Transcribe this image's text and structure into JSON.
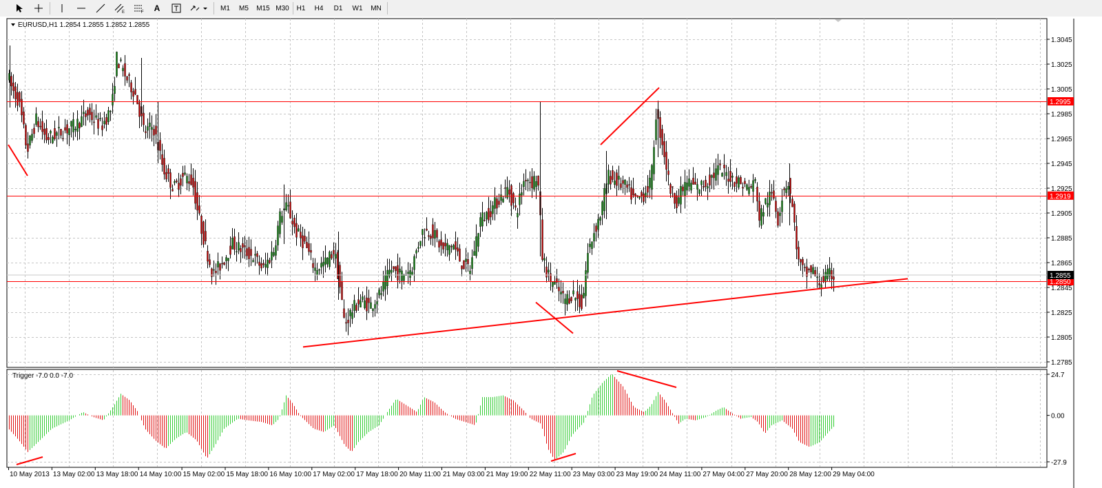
{
  "toolbar": {
    "tools": [
      {
        "name": "cursor-tool-button",
        "icon": "cursor-arrow-icon"
      },
      {
        "name": "crosshair-tool-button",
        "icon": "crosshair-icon"
      },
      {
        "name": "vertical-line-tool-button",
        "icon": "vertical-line-icon"
      },
      {
        "name": "horizontal-line-tool-button",
        "icon": "horizontal-line-icon"
      },
      {
        "name": "trendline-tool-button",
        "icon": "trendline-icon"
      },
      {
        "name": "equidistant-channel-tool-button",
        "icon": "equidistant-channel-icon"
      },
      {
        "name": "fibonacci-tool-button",
        "icon": "fibonacci-icon"
      },
      {
        "name": "text-tool-button",
        "icon": "text-icon",
        "label": "A"
      },
      {
        "name": "text-label-tool-button",
        "icon": "text-label-icon"
      },
      {
        "name": "arrows-tool-button",
        "icon": "arrows-icon"
      }
    ],
    "periods": [
      "M1",
      "M5",
      "M15",
      "M30",
      "H1",
      "H4",
      "D1",
      "W1",
      "MN"
    ]
  },
  "chart": {
    "symbol_label": "EURUSD,H1  1.2854 1.2855 1.2852 1.2855",
    "price_ticks": [
      "1.3045",
      "1.3025",
      "1.3005",
      "1.2985",
      "1.2965",
      "1.2945",
      "1.2925",
      "1.2905",
      "1.2885",
      "1.2865",
      "1.2845",
      "1.2825",
      "1.2805",
      "1.2785"
    ],
    "current_price": "1.2855",
    "horizontal_lines": [
      "1.2995",
      "1.2919",
      "1.2850"
    ],
    "colors": {
      "bull": "#0a7d0a",
      "bear": "#c00000",
      "line": "#ff0000",
      "grid": "#c4c4c4"
    }
  },
  "indicator": {
    "label": "Trigger -7.0 0.0 -7.0",
    "ticks": [
      "24.7",
      "0.00",
      "-27.9"
    ],
    "colors": {
      "up": "#33cc33",
      "down": "#e01010"
    }
  },
  "time_axis": {
    "labels": [
      "10 May 2013",
      "13 May 02:00",
      "13 May 18:00",
      "14 May 10:00",
      "15 May 02:00",
      "15 May 18:00",
      "16 May 10:00",
      "17 May 02:00",
      "17 May 18:00",
      "20 May 11:00",
      "21 May 03:00",
      "21 May 19:00",
      "22 May 11:00",
      "23 May 03:00",
      "23 May 19:00",
      "24 May 11:00",
      "27 May 04:00",
      "27 May 20:00",
      "28 May 12:00",
      "29 May 04:00"
    ]
  }
}
